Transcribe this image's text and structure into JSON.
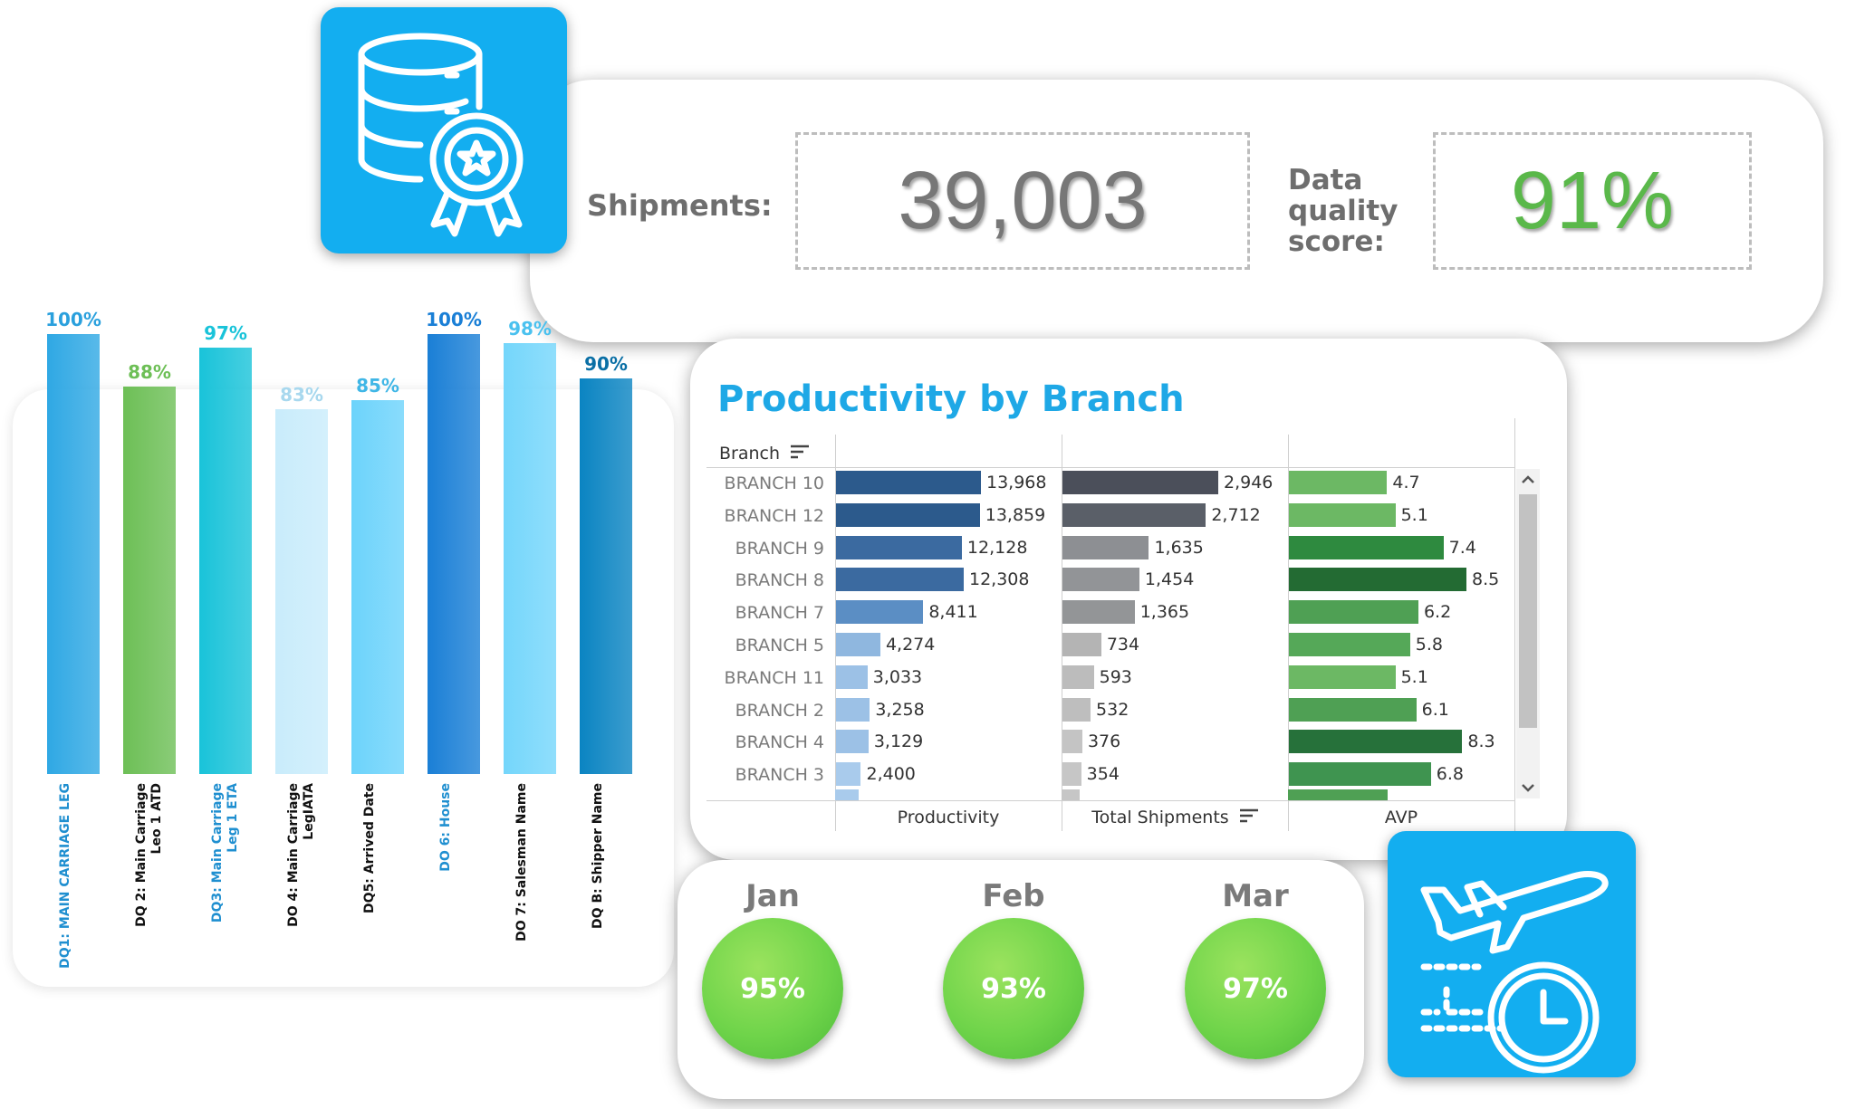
{
  "kpis": {
    "shipments_label": "Shipments:",
    "shipments_value": "39,003",
    "dq_label_line1": "Data",
    "dq_label_line2": "quality",
    "dq_label_line3": "score:",
    "dq_value": "91%"
  },
  "colors": {
    "icon_bg": "#13aef0",
    "title_blue": "#1ea8e6",
    "dq_green": "#5ab84a",
    "shipments_grey": "#6e6e6e"
  },
  "icons": {
    "top": "database-award-icon",
    "bottom": "airplane-clock-icon"
  },
  "dq_chart": {
    "chart_data": {
      "type": "bar",
      "categories": [
        "DQ1: MAIN CARRIAGE LEG",
        "DQ 2: Main Carriage\nLeo 1 ATD",
        "DQ3: Main Carriage\nLeg 1 ETA",
        "DO 4: Main Carriage\nLegIATA",
        "DQ5: Arrived Date",
        "DO 6: House",
        "DO 7: Salesman Name",
        "DQ B: Shipper Name"
      ],
      "values": [
        100,
        88,
        97,
        83,
        85,
        100,
        98,
        90
      ],
      "value_labels": [
        "100%",
        "88%",
        "97%",
        "83%",
        "85%",
        "100%",
        "98%",
        "90%"
      ],
      "ylim": [
        0,
        100
      ]
    },
    "bar_colors": [
      "#2fa8e4",
      "#6dbf56",
      "#19c3d9",
      "#c9ecfb",
      "#6cd3fb",
      "#1a7fd6",
      "#74d6fb",
      "#0a84c2"
    ],
    "pct_colors": [
      "#2aa0dd",
      "#6dbf56",
      "#19c3d9",
      "#a8d8ee",
      "#3fb6e6",
      "#1a7fd6",
      "#4ac1ef",
      "#0a6fa5"
    ],
    "label_colors": [
      "#1f8fd0",
      "#111111",
      "#1f8fd0",
      "#111111",
      "#111111",
      "#1f8fd0",
      "#111111",
      "#111111"
    ]
  },
  "productivity": {
    "title": "Productivity by Branch",
    "branch_header": "Branch",
    "columns": [
      "Productivity",
      "Total Shipments",
      "AVP"
    ],
    "chart_data": {
      "type": "bar",
      "categories": [
        "BRANCH 10",
        "BRANCH 12",
        "BRANCH 9",
        "BRANCH 8",
        "BRANCH 7",
        "BRANCH 5",
        "BRANCH 11",
        "BRANCH 2",
        "BRANCH 4",
        "BRANCH 3"
      ],
      "series": [
        {
          "name": "Productivity",
          "values": [
            13968,
            13859,
            12128,
            12308,
            8411,
            4274,
            3033,
            3258,
            3129,
            2400
          ],
          "labels": [
            "13,968",
            "13,859",
            "12,128",
            "12,308",
            "8,411",
            "4,274",
            "3,033",
            "3,258",
            "3,129",
            "2,400"
          ]
        },
        {
          "name": "Total Shipments",
          "values": [
            2946,
            2712,
            1635,
            1454,
            1365,
            734,
            593,
            532,
            376,
            354
          ],
          "labels": [
            "2,946",
            "2,712",
            "1,635",
            "1,454",
            "1,365",
            "734",
            "593",
            "532",
            "376",
            "354"
          ]
        },
        {
          "name": "AVP",
          "values": [
            4.7,
            5.1,
            7.4,
            8.5,
            6.2,
            5.8,
            5.1,
            6.1,
            8.3,
            6.8
          ],
          "labels": [
            "4.7",
            "5.1",
            "7.4",
            "8.5",
            "6.2",
            "5.8",
            "5.1",
            "6.1",
            "8.3",
            "6.8"
          ]
        }
      ],
      "colors": {
        "productivity": [
          "#2c5a8c",
          "#2c5a8c",
          "#3b6aa0",
          "#3b6aa0",
          "#5b8ec4",
          "#8fb7df",
          "#9cc1e6",
          "#9cc1e6",
          "#9cc1e6",
          "#a9cbec"
        ],
        "shipments": [
          "#4b4f5a",
          "#5a5f68",
          "#8d8f93",
          "#929497",
          "#939597",
          "#b4b4b4",
          "#bcbcbc",
          "#bebebe",
          "#c4c4c4",
          "#c6c6c6"
        ],
        "avp": [
          "#6cb864",
          "#6cb864",
          "#2e8a3f",
          "#236b33",
          "#4fa054",
          "#55a858",
          "#6cb864",
          "#4fa054",
          "#26713a",
          "#3f9450"
        ]
      }
    }
  },
  "months": [
    {
      "name": "Jan",
      "value": "95%"
    },
    {
      "name": "Feb",
      "value": "93%"
    },
    {
      "name": "Mar",
      "value": "97%"
    }
  ]
}
